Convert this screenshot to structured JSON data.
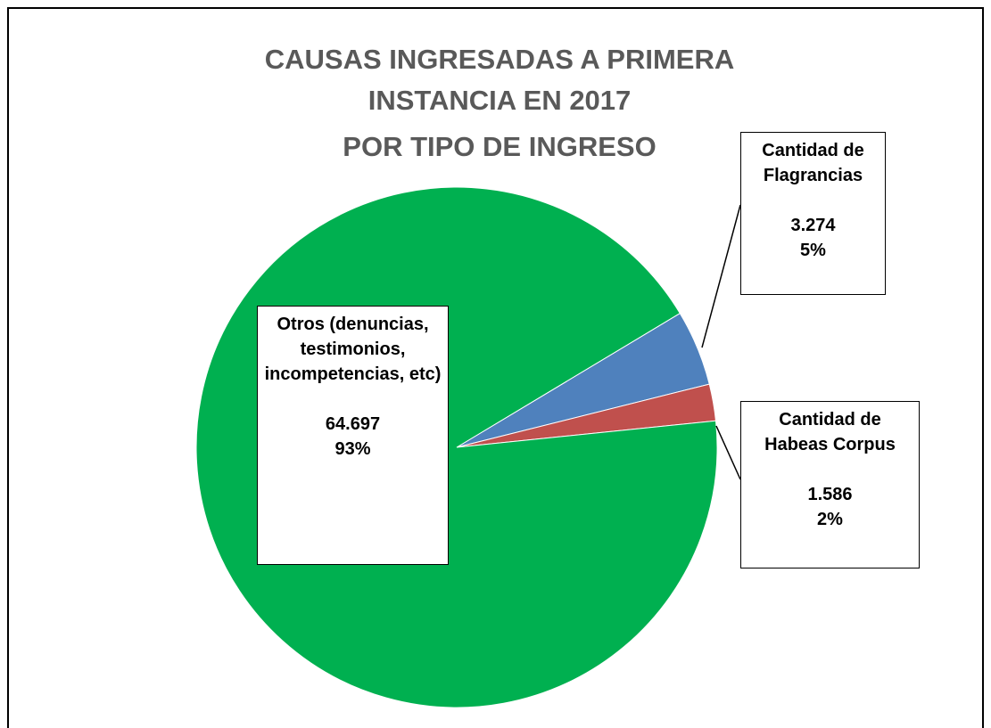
{
  "chart_data": {
    "type": "pie",
    "title": [
      "CAUSAS INGRESADAS A PRIMERA INSTANCIA EN 2017",
      "POR TIPO DE INGRESO"
    ],
    "categories": [
      "Cantidad de Flagrancias",
      "Cantidad de Habeas Corpus",
      "Otros (denuncias, testimonios, incompetencias, etc)"
    ],
    "values": [
      3274,
      1586,
      64697
    ],
    "value_labels": [
      "3.274",
      "1.586",
      "64.697"
    ],
    "percent_labels": [
      "5%",
      "2%",
      "93%"
    ],
    "colors": [
      "#4f81bd",
      "#c0504d",
      "#00b050"
    ]
  }
}
